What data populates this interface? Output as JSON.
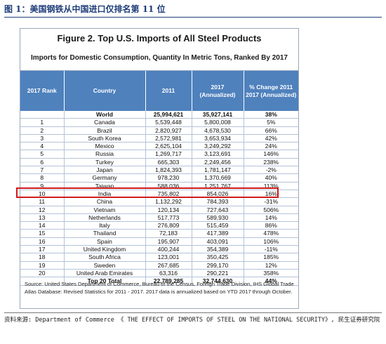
{
  "figure_label": "图 1：美国钢铁从中国进口仅排名第 11 位",
  "chart_data": {
    "type": "table",
    "title": "Figure 2. Top U.S. Imports of All Steel Products",
    "subtitle": "Imports for Domestic Consumption, Quantity In Metric Tons, Ranked By 2017",
    "columns": [
      "2017 Rank",
      "Country",
      "2011",
      "2017 (Annualized)",
      "% Change 2011 2017 (Annualized)"
    ],
    "rows": [
      {
        "rank": "",
        "country": "World",
        "y2011": "25,994,621",
        "y2017": "35,927,141",
        "change": "38%"
      },
      {
        "rank": "1",
        "country": "Canada",
        "y2011": "5,539,448",
        "y2017": "5,800,008",
        "change": "5%"
      },
      {
        "rank": "2",
        "country": "Brazil",
        "y2011": "2,820,927",
        "y2017": "4,678,530",
        "change": "66%"
      },
      {
        "rank": "3",
        "country": "South Korea",
        "y2011": "2,572,981",
        "y2017": "3,653,934",
        "change": "42%"
      },
      {
        "rank": "4",
        "country": "Mexico",
        "y2011": "2,625,104",
        "y2017": "3,249,292",
        "change": "24%"
      },
      {
        "rank": "5",
        "country": "Russia",
        "y2011": "1,269,717",
        "y2017": "3,123,691",
        "change": "146%"
      },
      {
        "rank": "6",
        "country": "Turkey",
        "y2011": "665,303",
        "y2017": "2,249,456",
        "change": "238%"
      },
      {
        "rank": "7",
        "country": "Japan",
        "y2011": "1,824,393",
        "y2017": "1,781,147",
        "change": "-2%"
      },
      {
        "rank": "8",
        "country": "Germany",
        "y2011": "978,230",
        "y2017": "1,370,669",
        "change": "40%"
      },
      {
        "rank": "9",
        "country": "Taiwan",
        "y2011": "588,036",
        "y2017": "1,251,767",
        "change": "113%"
      },
      {
        "rank": "10",
        "country": "India",
        "y2011": "735,802",
        "y2017": "854,026",
        "change": "16%"
      },
      {
        "rank": "11",
        "country": "China",
        "y2011": "1,132,292",
        "y2017": "784,393",
        "change": "-31%"
      },
      {
        "rank": "12",
        "country": "Vietnam",
        "y2011": "120,134",
        "y2017": "727,643",
        "change": "506%"
      },
      {
        "rank": "13",
        "country": "Netherlands",
        "y2011": "517,773",
        "y2017": "589,930",
        "change": "14%"
      },
      {
        "rank": "14",
        "country": "Italy",
        "y2011": "276,809",
        "y2017": "515,459",
        "change": "86%"
      },
      {
        "rank": "15",
        "country": "Thailand",
        "y2011": "72,183",
        "y2017": "417,389",
        "change": "478%"
      },
      {
        "rank": "16",
        "country": "Spain",
        "y2011": "195,907",
        "y2017": "403,091",
        "change": "106%"
      },
      {
        "rank": "17",
        "country": "United Kingdom",
        "y2011": "400,244",
        "y2017": "354,389",
        "change": "-11%"
      },
      {
        "rank": "18",
        "country": "South Africa",
        "y2011": "123,001",
        "y2017": "350,425",
        "change": "185%"
      },
      {
        "rank": "19",
        "country": "Sweden",
        "y2011": "267,685",
        "y2017": "299,170",
        "change": "12%"
      },
      {
        "rank": "20",
        "country": "United Arab Emirates",
        "y2011": "63,316",
        "y2017": "290,221",
        "change": "358%"
      },
      {
        "rank": "",
        "country": "Top 20 Total",
        "y2011": "22,789,285",
        "y2017": "32,744,630",
        "change": "44%"
      }
    ],
    "highlight_rank": "11"
  },
  "source_note": "Source: United States Department of Commerce, Bureau of the Census, Foreign Trade Division, IHS Global Trade Atlas Database: Revised Statistics for 2011 - 2017. 2017 data is annualized based on YTD 2017 through October.",
  "footer": "资料来源: Department of Commerce 《 THE EFFECT OF IMPORTS OF STEEL ON THE NATIONAL SECURITY》, 民生证券研究院",
  "colors": {
    "header_bg": "#4f81bd",
    "highlight": "#d11b1b",
    "label": "#1f3d7a"
  }
}
